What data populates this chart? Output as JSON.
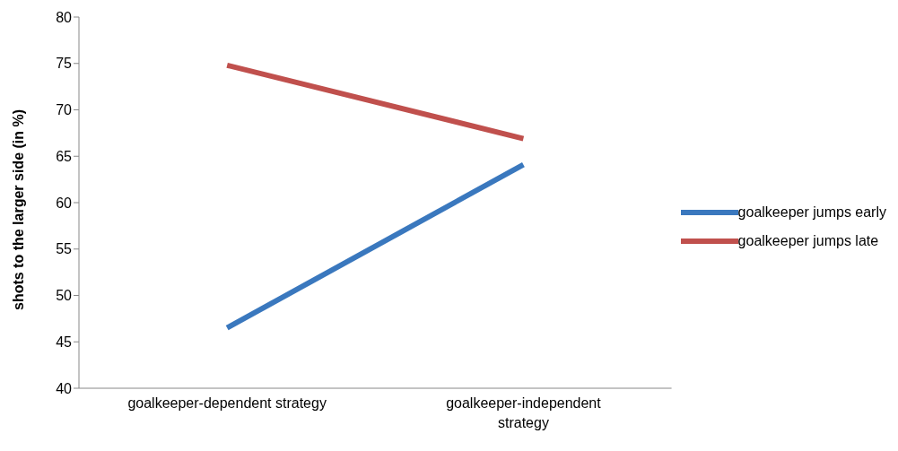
{
  "chart_data": {
    "type": "line",
    "ylabel": "shots to the larger side (in %)",
    "categories": [
      "goalkeeper-dependent strategy",
      "goalkeeper-independent strategy"
    ],
    "series": [
      {
        "name": "goalkeeper jumps early",
        "color": "#3a78be",
        "values": [
          46.5,
          64.1
        ]
      },
      {
        "name": "goalkeeper jumps late",
        "color": "#c0504d",
        "values": [
          74.8,
          66.9
        ]
      }
    ],
    "ylim": [
      40,
      80
    ],
    "yticks": [
      40,
      45,
      50,
      55,
      60,
      65,
      70,
      75,
      80
    ],
    "legend": "right",
    "marker": "none",
    "line_style": "solid"
  }
}
